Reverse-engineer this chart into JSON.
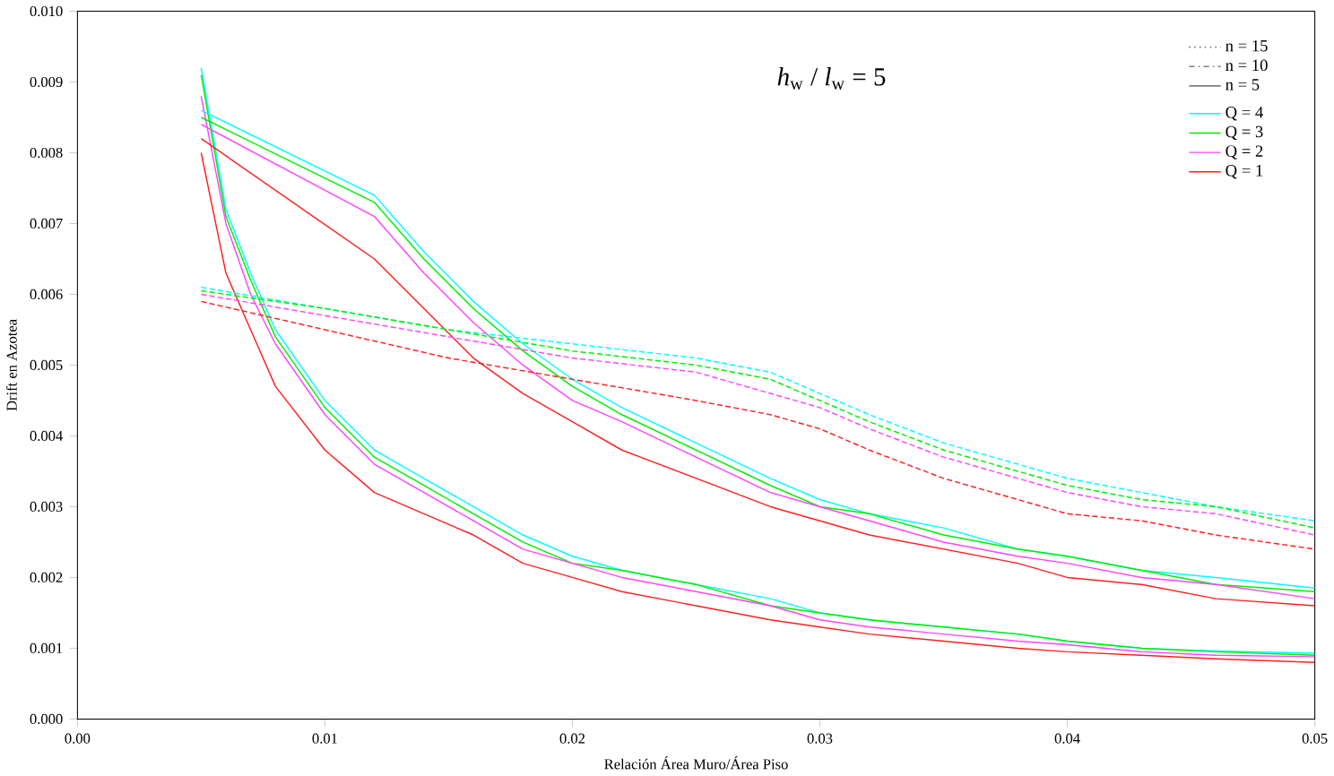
{
  "chart_data": {
    "type": "line",
    "xlabel": "Relación Área Muro/Área Piso",
    "ylabel": "Drift en Azotea",
    "xlim": [
      0,
      0.05
    ],
    "ylim": [
      0,
      0.01
    ],
    "xticks": [
      {
        "value": 0,
        "label": "0.00"
      },
      {
        "value": 0.01,
        "label": "0.01"
      },
      {
        "value": 0.02,
        "label": "0.02"
      },
      {
        "value": 0.03,
        "label": "0.03"
      },
      {
        "value": 0.04,
        "label": "0.04"
      },
      {
        "value": 0.05,
        "label": "0.05"
      }
    ],
    "yticks": [
      {
        "value": 0,
        "label": "0.000"
      },
      {
        "value": 0.001,
        "label": "0.001"
      },
      {
        "value": 0.002,
        "label": "0.002"
      },
      {
        "value": 0.003,
        "label": "0.003"
      },
      {
        "value": 0.004,
        "label": "0.004"
      },
      {
        "value": 0.005,
        "label": "0.005"
      },
      {
        "value": 0.006,
        "label": "0.006"
      },
      {
        "value": 0.007,
        "label": "0.007"
      },
      {
        "value": 0.008,
        "label": "0.008"
      },
      {
        "value": 0.009,
        "label": "0.009"
      },
      {
        "value": 0.01,
        "label": "0.010"
      }
    ],
    "legend": "top right",
    "grid": false,
    "marker": "none",
    "annotations": [
      "*h*$_{w}$ / *l*$_{w}$ = 5",
      "n = 15",
      "n = 10",
      "n =  5"
    ],
    "series": [
      {
        "name": "Q = 4",
        "color": "#00ffff",
        "line_style": "solid",
        "x": [
          0.005,
          0.006,
          0.007,
          0.008,
          0.01,
          0.012,
          0.014,
          0.016,
          0.018,
          0.02,
          0.022,
          0.025,
          0.028,
          0.03,
          0.032,
          0.035,
          0.038,
          0.04,
          0.043,
          0.046,
          0.05
        ],
        "values": [
          0.0092,
          0.0072,
          0.0063,
          0.0055,
          0.0045,
          0.0038,
          0.0034,
          0.003,
          0.0026,
          0.0023,
          0.0021,
          0.0019,
          0.0017,
          0.0015,
          0.0014,
          0.0013,
          0.0012,
          0.0011,
          0.001,
          0.00096,
          0.00093
        ]
      },
      {
        "name": "Q = 3",
        "color": "#00ee00",
        "line_style": "solid",
        "x": [
          0.005,
          0.006,
          0.007,
          0.008,
          0.01,
          0.012,
          0.014,
          0.016,
          0.018,
          0.02,
          0.022,
          0.025,
          0.028,
          0.03,
          0.032,
          0.035,
          0.038,
          0.04,
          0.043,
          0.046,
          0.05
        ],
        "values": [
          0.0091,
          0.0071,
          0.0062,
          0.0054,
          0.0044,
          0.0037,
          0.0033,
          0.0029,
          0.0025,
          0.0022,
          0.0021,
          0.0019,
          0.0016,
          0.0015,
          0.0014,
          0.0013,
          0.0012,
          0.0011,
          0.001,
          0.00095,
          0.0009
        ]
      },
      {
        "name": "Q = 2",
        "color": "#ff44ff",
        "line_style": "solid",
        "x": [
          0.005,
          0.006,
          0.007,
          0.008,
          0.01,
          0.012,
          0.014,
          0.016,
          0.018,
          0.02,
          0.022,
          0.025,
          0.028,
          0.03,
          0.032,
          0.035,
          0.038,
          0.04,
          0.043,
          0.046,
          0.05
        ],
        "values": [
          0.0088,
          0.007,
          0.006,
          0.0053,
          0.0043,
          0.0036,
          0.0032,
          0.0028,
          0.0024,
          0.0022,
          0.002,
          0.0018,
          0.0016,
          0.0014,
          0.0013,
          0.0012,
          0.0011,
          0.00105,
          0.00095,
          0.0009,
          0.00088
        ]
      },
      {
        "name": "Q = 1",
        "color": "#ff2020",
        "line_style": "solid",
        "x": [
          0.005,
          0.006,
          0.007,
          0.008,
          0.01,
          0.012,
          0.014,
          0.016,
          0.018,
          0.02,
          0.022,
          0.025,
          0.028,
          0.03,
          0.032,
          0.035,
          0.038,
          0.04,
          0.043,
          0.046,
          0.05
        ],
        "values": [
          0.008,
          0.0063,
          0.0055,
          0.0047,
          0.0038,
          0.0032,
          0.0029,
          0.0026,
          0.0022,
          0.002,
          0.0018,
          0.0016,
          0.0014,
          0.0013,
          0.0012,
          0.0011,
          0.001,
          0.00095,
          0.0009,
          0.00085,
          0.0008
        ]
      },
      {
        "color": "#00ffff",
        "line_style": "solid",
        "x": [
          0.005,
          0.012,
          0.014,
          0.016,
          0.018,
          0.02,
          0.022,
          0.025,
          0.028,
          0.03,
          0.032,
          0.035,
          0.038,
          0.04,
          0.043,
          0.046,
          0.05
        ],
        "values": [
          0.0086,
          0.0074,
          0.0066,
          0.0059,
          0.0053,
          0.0048,
          0.0044,
          0.0039,
          0.0034,
          0.0031,
          0.0029,
          0.0027,
          0.0024,
          0.0023,
          0.0021,
          0.002,
          0.00185
        ]
      },
      {
        "color": "#00ee00",
        "line_style": "solid",
        "x": [
          0.005,
          0.012,
          0.014,
          0.016,
          0.018,
          0.02,
          0.022,
          0.025,
          0.028,
          0.03,
          0.032,
          0.035,
          0.038,
          0.04,
          0.043,
          0.046,
          0.05
        ],
        "values": [
          0.0085,
          0.0073,
          0.0065,
          0.0058,
          0.0052,
          0.0047,
          0.0043,
          0.0038,
          0.0033,
          0.003,
          0.0029,
          0.0026,
          0.0024,
          0.0023,
          0.0021,
          0.0019,
          0.0018
        ]
      },
      {
        "color": "#ff44ff",
        "line_style": "solid",
        "x": [
          0.005,
          0.012,
          0.014,
          0.016,
          0.018,
          0.02,
          0.022,
          0.025,
          0.028,
          0.03,
          0.032,
          0.035,
          0.038,
          0.04,
          0.043,
          0.046,
          0.05
        ],
        "values": [
          0.0084,
          0.0071,
          0.0063,
          0.0056,
          0.005,
          0.0045,
          0.0042,
          0.0037,
          0.0032,
          0.003,
          0.0028,
          0.0025,
          0.0023,
          0.0022,
          0.002,
          0.0019,
          0.0017
        ]
      },
      {
        "color": "#ff2020",
        "line_style": "solid",
        "x": [
          0.005,
          0.012,
          0.014,
          0.016,
          0.018,
          0.02,
          0.022,
          0.025,
          0.028,
          0.03,
          0.032,
          0.035,
          0.038,
          0.04,
          0.043,
          0.046,
          0.05
        ],
        "values": [
          0.0082,
          0.0065,
          0.0058,
          0.0051,
          0.0046,
          0.0042,
          0.0038,
          0.0034,
          0.003,
          0.0028,
          0.0026,
          0.0024,
          0.0022,
          0.002,
          0.0019,
          0.0017,
          0.0016
        ]
      },
      {
        "color": "#00ffff",
        "line_style": "dashed",
        "x": [
          0.005,
          0.01,
          0.015,
          0.02,
          0.025,
          0.028,
          0.03,
          0.032,
          0.035,
          0.038,
          0.04,
          0.043,
          0.046,
          0.05
        ],
        "values": [
          0.0061,
          0.0058,
          0.0055,
          0.0053,
          0.0051,
          0.0049,
          0.0046,
          0.0043,
          0.0039,
          0.0036,
          0.0034,
          0.0032,
          0.003,
          0.0028
        ]
      },
      {
        "color": "#00ee00",
        "line_style": "dashed",
        "x": [
          0.005,
          0.01,
          0.015,
          0.02,
          0.025,
          0.028,
          0.03,
          0.032,
          0.035,
          0.038,
          0.04,
          0.043,
          0.046,
          0.05
        ],
        "values": [
          0.00605,
          0.0058,
          0.0055,
          0.0052,
          0.005,
          0.0048,
          0.0045,
          0.0042,
          0.0038,
          0.0035,
          0.0033,
          0.0031,
          0.003,
          0.0027
        ]
      },
      {
        "color": "#ff44ff",
        "line_style": "dashed",
        "x": [
          0.005,
          0.01,
          0.015,
          0.02,
          0.025,
          0.028,
          0.03,
          0.032,
          0.035,
          0.038,
          0.04,
          0.043,
          0.046,
          0.05
        ],
        "values": [
          0.006,
          0.0057,
          0.0054,
          0.0051,
          0.0049,
          0.0046,
          0.0044,
          0.0041,
          0.0037,
          0.0034,
          0.0032,
          0.003,
          0.0029,
          0.0026
        ]
      },
      {
        "color": "#ff2020",
        "line_style": "dashed",
        "x": [
          0.005,
          0.01,
          0.015,
          0.02,
          0.025,
          0.028,
          0.03,
          0.032,
          0.035,
          0.038,
          0.04,
          0.043,
          0.046,
          0.05
        ],
        "values": [
          0.0059,
          0.0055,
          0.0051,
          0.0048,
          0.0045,
          0.0043,
          0.0041,
          0.0038,
          0.0034,
          0.0031,
          0.0029,
          0.0028,
          0.0026,
          0.0024
        ]
      }
    ]
  }
}
